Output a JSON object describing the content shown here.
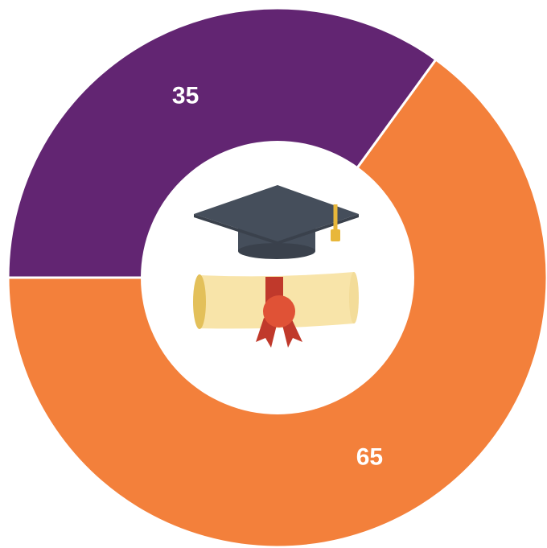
{
  "chart_data": {
    "type": "pie",
    "categories": [
      null,
      null
    ],
    "series": [
      {
        "values": [
          35,
          65
        ],
        "colors": [
          "#622572",
          "#f3803b"
        ]
      }
    ]
  }
}
